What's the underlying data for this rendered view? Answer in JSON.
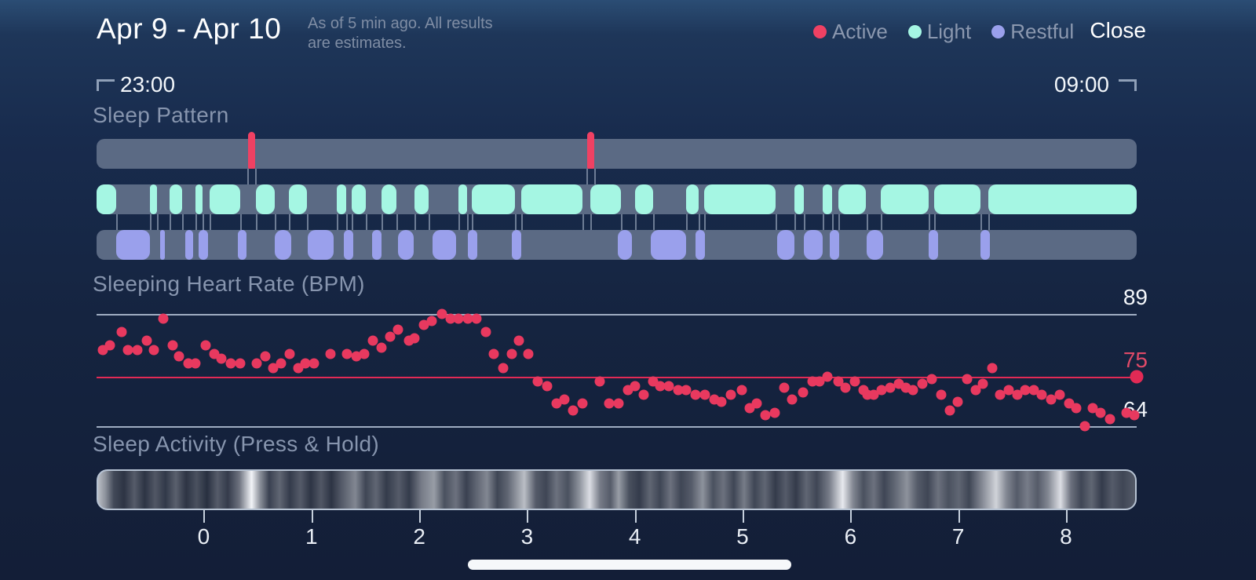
{
  "header": {
    "title": "Apr 9 - Apr 10",
    "subtitle_line1": "As of 5 min ago. All results",
    "subtitle_line2": "are estimates.",
    "legend": [
      {
        "label": "Active",
        "color": "#ef4163"
      },
      {
        "label": "Light",
        "color": "#a5f6e3"
      },
      {
        "label": "Restful",
        "color": "#9aa0ec"
      }
    ],
    "close_label": "Close"
  },
  "time_range": {
    "start": "23:00",
    "end": "09:00"
  },
  "colors": {
    "track": "#5b6a84",
    "active": "#ef4163",
    "light": "#a5f6e3",
    "restful": "#9aa0ec",
    "gridline": "#9fadc2",
    "avg_line": "#e22a55",
    "heart_dot": "#e8395f",
    "avg_label": "#e04a68",
    "value_label": "#f4f7fb"
  },
  "chart_data": [
    {
      "type": "timeline",
      "title": "Sleep Pattern",
      "x_range": [
        "23:00",
        "09:00"
      ],
      "series": [
        {
          "name": "Active",
          "spikes_pct": [
            14.9,
            47.5
          ]
        },
        {
          "name": "Light",
          "segments_pct": [
            [
              0,
              1.9
            ],
            [
              5.1,
              5.8
            ],
            [
              7.0,
              8.2
            ],
            [
              9.5,
              10.2
            ],
            [
              10.9,
              13.8
            ],
            [
              15.3,
              17.1
            ],
            [
              18.5,
              20.2
            ],
            [
              23.1,
              24.0
            ],
            [
              24.5,
              25.9
            ],
            [
              27.4,
              28.8
            ],
            [
              30.6,
              31.9
            ],
            [
              34.8,
              35.6
            ],
            [
              36.1,
              40.2
            ],
            [
              40.8,
              46.7
            ],
            [
              47.5,
              50.4
            ],
            [
              51.8,
              53.5
            ],
            [
              56.7,
              57.9
            ],
            [
              58.4,
              65.3
            ],
            [
              67.1,
              68.0
            ],
            [
              69.8,
              70.7
            ],
            [
              71.3,
              74.0
            ],
            [
              75.4,
              80.0
            ],
            [
              80.5,
              85.0
            ],
            [
              85.7,
              100
            ]
          ]
        },
        {
          "name": "Restful",
          "segments_pct": [
            [
              1.9,
              5.1
            ],
            [
              6.1,
              6.6
            ],
            [
              8.5,
              9.3
            ],
            [
              9.8,
              10.7
            ],
            [
              13.6,
              14.4
            ],
            [
              17.1,
              18.7
            ],
            [
              20.3,
              22.8
            ],
            [
              23.8,
              24.7
            ],
            [
              26.5,
              27.4
            ],
            [
              29.0,
              30.5
            ],
            [
              32.3,
              34.6
            ],
            [
              35.7,
              36.6
            ],
            [
              39.9,
              40.8
            ],
            [
              50.1,
              51.5
            ],
            [
              53.3,
              56.7
            ],
            [
              57.6,
              58.5
            ],
            [
              65.4,
              67.1
            ],
            [
              68.0,
              69.8
            ],
            [
              70.5,
              71.4
            ],
            [
              74.0,
              75.6
            ],
            [
              80.0,
              80.9
            ],
            [
              85.0,
              85.9
            ]
          ]
        }
      ]
    },
    {
      "type": "scatter",
      "title": "Sleeping Heart Rate (BPM)",
      "ylim": [
        64,
        89
      ],
      "y_max": {
        "value": 89,
        "label": "89"
      },
      "y_avg": {
        "value": 75,
        "label": "75"
      },
      "y_min": {
        "value": 64,
        "label": "64"
      },
      "end_point": [
        100,
        75
      ],
      "points": [
        [
          0.6,
          81
        ],
        [
          1.3,
          82
        ],
        [
          2.4,
          85
        ],
        [
          3.0,
          81
        ],
        [
          3.9,
          81
        ],
        [
          4.8,
          83
        ],
        [
          5.5,
          81
        ],
        [
          6.4,
          88
        ],
        [
          7.3,
          82
        ],
        [
          7.9,
          79.5
        ],
        [
          8.8,
          78
        ],
        [
          9.5,
          78
        ],
        [
          10.5,
          82
        ],
        [
          11.3,
          80
        ],
        [
          12.0,
          79
        ],
        [
          12.9,
          78
        ],
        [
          13.8,
          78
        ],
        [
          15.4,
          78
        ],
        [
          16.2,
          79.5
        ],
        [
          17.0,
          77
        ],
        [
          17.7,
          78
        ],
        [
          18.6,
          80
        ],
        [
          19.4,
          77
        ],
        [
          20.1,
          78
        ],
        [
          20.9,
          78
        ],
        [
          22.5,
          80
        ],
        [
          24.1,
          80
        ],
        [
          25.0,
          79.5
        ],
        [
          25.7,
          80
        ],
        [
          26.6,
          83
        ],
        [
          27.4,
          81.5
        ],
        [
          28.2,
          84
        ],
        [
          29.0,
          85.5
        ],
        [
          30.0,
          83
        ],
        [
          30.6,
          83.5
        ],
        [
          31.5,
          86.5
        ],
        [
          32.2,
          87.5
        ],
        [
          33.2,
          89
        ],
        [
          34.0,
          88
        ],
        [
          34.8,
          88
        ],
        [
          35.7,
          88
        ],
        [
          36.5,
          88
        ],
        [
          37.4,
          85
        ],
        [
          38.2,
          80
        ],
        [
          39.1,
          77
        ],
        [
          39.9,
          80
        ],
        [
          40.6,
          83
        ],
        [
          41.5,
          80
        ],
        [
          42.4,
          74
        ],
        [
          43.3,
          73
        ],
        [
          44.2,
          69
        ],
        [
          45.0,
          70
        ],
        [
          45.8,
          67.5
        ],
        [
          46.7,
          69
        ],
        [
          48.4,
          74
        ],
        [
          49.3,
          69
        ],
        [
          50.2,
          69
        ],
        [
          51.1,
          72
        ],
        [
          51.8,
          73
        ],
        [
          52.6,
          71
        ],
        [
          53.5,
          74
        ],
        [
          54.2,
          73
        ],
        [
          55.0,
          73
        ],
        [
          55.9,
          72
        ],
        [
          56.7,
          72
        ],
        [
          57.6,
          71
        ],
        [
          58.5,
          71
        ],
        [
          59.4,
          70
        ],
        [
          60.1,
          69.5
        ],
        [
          61.0,
          71
        ],
        [
          62.0,
          72
        ],
        [
          62.8,
          68
        ],
        [
          63.5,
          69
        ],
        [
          64.3,
          66.5
        ],
        [
          65.2,
          67
        ],
        [
          66.1,
          72.5
        ],
        [
          66.9,
          70
        ],
        [
          67.9,
          71.5
        ],
        [
          68.8,
          74
        ],
        [
          69.5,
          74
        ],
        [
          70.3,
          75
        ],
        [
          71.3,
          74
        ],
        [
          72.0,
          72.5
        ],
        [
          72.9,
          74
        ],
        [
          73.7,
          72
        ],
        [
          74.1,
          71
        ],
        [
          74.7,
          71
        ],
        [
          75.5,
          72
        ],
        [
          76.3,
          72.5
        ],
        [
          77.1,
          73.5
        ],
        [
          77.8,
          72.5
        ],
        [
          78.5,
          72
        ],
        [
          79.4,
          73.5
        ],
        [
          80.3,
          74.5
        ],
        [
          81.2,
          71
        ],
        [
          82.0,
          67.5
        ],
        [
          82.8,
          69.5
        ],
        [
          83.7,
          74.5
        ],
        [
          84.5,
          72
        ],
        [
          85.2,
          73.5
        ],
        [
          86.1,
          77
        ],
        [
          86.9,
          71
        ],
        [
          87.7,
          72
        ],
        [
          88.5,
          71
        ],
        [
          89.3,
          72
        ],
        [
          90.1,
          72
        ],
        [
          90.9,
          71
        ],
        [
          91.8,
          70
        ],
        [
          92.6,
          71
        ],
        [
          93.5,
          69
        ],
        [
          94.2,
          68
        ],
        [
          95.0,
          64
        ],
        [
          95.8,
          68
        ],
        [
          96.5,
          67
        ],
        [
          97.4,
          65.5
        ],
        [
          99.0,
          67
        ],
        [
          99.8,
          66.5
        ]
      ]
    },
    {
      "type": "heatmap",
      "title": "Sleep Activity (Press & Hold)",
      "x_ticks": [
        {
          "label": "0",
          "pct": 10.3
        },
        {
          "label": "1",
          "pct": 20.66
        },
        {
          "label": "2",
          "pct": 31.03
        },
        {
          "label": "3",
          "pct": 41.39
        },
        {
          "label": "4",
          "pct": 51.75
        },
        {
          "label": "5",
          "pct": 62.11
        },
        {
          "label": "6",
          "pct": 72.48
        },
        {
          "label": "7",
          "pct": 82.84
        },
        {
          "label": "8",
          "pct": 93.2
        }
      ],
      "stripes": [
        [
          0,
          0.75
        ],
        [
          0.7,
          0.55
        ],
        [
          1.5,
          0.22
        ],
        [
          2.5,
          0.12
        ],
        [
          3.5,
          0.3
        ],
        [
          4.5,
          0.12
        ],
        [
          5.5,
          0.28
        ],
        [
          6.5,
          0.14
        ],
        [
          7.5,
          0.32
        ],
        [
          8.5,
          0.12
        ],
        [
          9.5,
          0.25
        ],
        [
          10.5,
          0.1
        ],
        [
          11.5,
          0.3
        ],
        [
          12.5,
          0.15
        ],
        [
          13.6,
          0.4
        ],
        [
          14.8,
          1.0
        ],
        [
          15.6,
          0.55
        ],
        [
          16.5,
          0.18
        ],
        [
          17.5,
          0.35
        ],
        [
          18.5,
          0.15
        ],
        [
          19.5,
          0.3
        ],
        [
          20.5,
          0.12
        ],
        [
          21.5,
          0.28
        ],
        [
          22.5,
          0.12
        ],
        [
          23.5,
          0.3
        ],
        [
          24.8,
          0.5
        ],
        [
          25.8,
          0.2
        ],
        [
          26.8,
          0.35
        ],
        [
          27.8,
          0.15
        ],
        [
          29,
          0.3
        ],
        [
          30,
          0.15
        ],
        [
          31.2,
          0.45
        ],
        [
          32.4,
          0.6
        ],
        [
          33.4,
          0.25
        ],
        [
          34.5,
          0.4
        ],
        [
          35.5,
          0.18
        ],
        [
          36.5,
          0.35
        ],
        [
          37.5,
          0.5
        ],
        [
          38.5,
          0.2
        ],
        [
          39.5,
          0.35
        ],
        [
          41.1,
          0.75
        ],
        [
          42.2,
          0.3
        ],
        [
          43.2,
          0.2
        ],
        [
          44.2,
          0.4
        ],
        [
          45.3,
          0.25
        ],
        [
          46.4,
          0.55
        ],
        [
          47.4,
          0.9
        ],
        [
          48.4,
          0.45
        ],
        [
          49.4,
          0.3
        ],
        [
          50.2,
          0.6
        ],
        [
          51.2,
          0.25
        ],
        [
          52.2,
          0.15
        ],
        [
          53.2,
          0.35
        ],
        [
          54.2,
          0.2
        ],
        [
          55.2,
          0.4
        ],
        [
          56.2,
          0.2
        ],
        [
          57.2,
          0.3
        ],
        [
          58.3,
          0.55
        ],
        [
          59.3,
          0.25
        ],
        [
          60.3,
          0.4
        ],
        [
          61.3,
          0.2
        ],
        [
          62.3,
          0.45
        ],
        [
          63.3,
          0.2
        ],
        [
          64.3,
          0.35
        ],
        [
          65.3,
          0.15
        ],
        [
          66.3,
          0.3
        ],
        [
          67.3,
          0.15
        ],
        [
          68.3,
          0.35
        ],
        [
          69.3,
          0.2
        ],
        [
          70.5,
          0.45
        ],
        [
          71.8,
          0.95
        ],
        [
          72.8,
          0.5
        ],
        [
          73.8,
          0.25
        ],
        [
          74.8,
          0.4
        ],
        [
          75.8,
          0.2
        ],
        [
          76.8,
          0.35
        ],
        [
          78,
          0.55
        ],
        [
          79,
          0.3
        ],
        [
          80,
          0.2
        ],
        [
          81,
          0.4
        ],
        [
          82,
          0.25
        ],
        [
          83,
          0.35
        ],
        [
          84,
          0.2
        ],
        [
          85,
          0.45
        ],
        [
          86.6,
          0.85
        ],
        [
          87.6,
          0.5
        ],
        [
          88.6,
          0.3
        ],
        [
          89.6,
          0.45
        ],
        [
          90.6,
          0.3
        ],
        [
          91.6,
          0.5
        ],
        [
          92.8,
          0.9
        ],
        [
          93.8,
          0.4
        ],
        [
          94.8,
          0.2
        ],
        [
          95.8,
          0.35
        ],
        [
          96.8,
          0.15
        ],
        [
          97.8,
          0.3
        ],
        [
          98.8,
          0.2
        ],
        [
          100,
          0.3
        ]
      ]
    }
  ]
}
